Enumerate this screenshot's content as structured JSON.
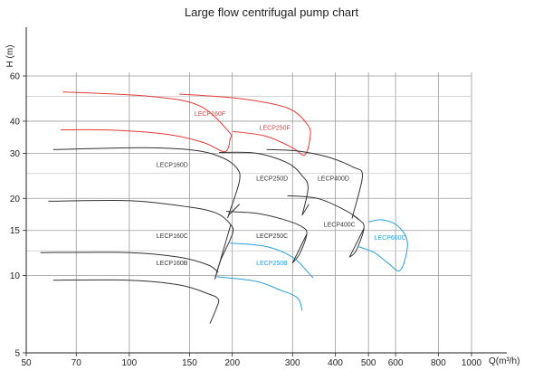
{
  "chart_data": {
    "type": "line",
    "title": "Large flow centrifugal pump chart",
    "xlabel": "Q(m³/h)",
    "ylabel": "H (m)",
    "xscale": "log",
    "yscale": "log",
    "xlim": [
      50,
      1000
    ],
    "ylim": [
      5,
      60
    ],
    "xticks": [
      50,
      70,
      100,
      150,
      200,
      300,
      400,
      500,
      600,
      800,
      1000
    ],
    "yticks": [
      5,
      10,
      15,
      20,
      30,
      40,
      60
    ],
    "extra_gridlines_y": [
      12.5,
      25,
      50
    ],
    "grid": true,
    "colors": {
      "red": "#e53935",
      "black": "#333333",
      "blue": "#29a0d8",
      "grid": "#9a9a9a"
    },
    "series": [
      {
        "name": "LECP160F",
        "color": "red",
        "label": {
          "text": "LECP160F",
          "at": [
            155,
            42
          ]
        },
        "points": [
          [
            63,
            37
          ],
          [
            90,
            36.9
          ],
          [
            130,
            35.5
          ],
          [
            165,
            33
          ],
          [
            190,
            30.4
          ],
          [
            197,
            34
          ],
          [
            195,
            36.5
          ],
          [
            160,
            46
          ],
          [
            115,
            50
          ],
          [
            64,
            52
          ]
        ]
      },
      {
        "name": "LECP250F",
        "color": "red",
        "label": {
          "text": "LECP250F",
          "at": [
            240,
            37
          ]
        },
        "points": [
          [
            200,
            36.5
          ],
          [
            250,
            35
          ],
          [
            300,
            31.5
          ],
          [
            325,
            29.5
          ],
          [
            337,
            34
          ],
          [
            333,
            38.5
          ],
          [
            290,
            45
          ],
          [
            210,
            49
          ],
          [
            140,
            51
          ]
        ]
      },
      {
        "name": "LECP160D",
        "color": "black",
        "label": {
          "text": "LECP160D",
          "at": [
            120,
            26.5
          ]
        },
        "points": [
          [
            60,
            31
          ],
          [
            110,
            31.5
          ],
          [
            155,
            30.8
          ],
          [
            185,
            29
          ],
          [
            205,
            26.5
          ],
          [
            210,
            23.5
          ],
          [
            195,
            17.2
          ],
          [
            195,
            17.2
          ]
        ]
      },
      {
        "name": "LECP250D",
        "color": "black",
        "label": {
          "text": "LECP250D",
          "at": [
            235,
            23.5
          ]
        },
        "points": [
          [
            183,
            30.2
          ],
          [
            235,
            30
          ],
          [
            290,
            27.5
          ],
          [
            320,
            24.5
          ],
          [
            333,
            22
          ],
          [
            320,
            17.2
          ]
        ]
      },
      {
        "name": "LECP400D",
        "color": "black",
        "label": {
          "text": "LECP400D",
          "at": [
            355,
            23.5
          ]
        },
        "points": [
          [
            252,
            31
          ],
          [
            310,
            30.6
          ],
          [
            380,
            29
          ],
          [
            450,
            26.5
          ],
          [
            480,
            24.5
          ],
          [
            450,
            17.2
          ],
          [
            450,
            17.2
          ]
        ]
      },
      {
        "name": "LECP160C",
        "color": "black",
        "label": {
          "text": "LECP160C",
          "at": [
            120,
            14
          ]
        },
        "points": [
          [
            58,
            19.5
          ],
          [
            100,
            19.6
          ],
          [
            150,
            18.5
          ],
          [
            180,
            17.5
          ],
          [
            198,
            15.8
          ],
          [
            200,
            14.5
          ],
          [
            185,
            11.5
          ],
          [
            178,
            9.7
          ]
        ]
      },
      {
        "name": "LECP250C",
        "color": "black",
        "label": {
          "text": "LECP250C",
          "at": [
            235,
            14
          ]
        },
        "points": [
          [
            192,
            17.8
          ],
          [
            235,
            17.5
          ],
          [
            280,
            16.6
          ],
          [
            320,
            15.5
          ],
          [
            330,
            14.5
          ],
          [
            315,
            12.2
          ],
          [
            300,
            11.2
          ]
        ]
      },
      {
        "name": "LECP400C",
        "color": "black",
        "label": {
          "text": "LECP400C",
          "at": [
            370,
            15.5
          ]
        },
        "points": [
          [
            290,
            20.5
          ],
          [
            355,
            20
          ],
          [
            420,
            18.2
          ],
          [
            470,
            16.5
          ],
          [
            485,
            15.3
          ],
          [
            460,
            12.5
          ],
          [
            440,
            11.8
          ]
        ]
      },
      {
        "name": "LECP160B",
        "color": "black",
        "label": {
          "text": "LECP160B",
          "at": [
            120,
            11
          ]
        },
        "points": [
          [
            60,
            9.6
          ],
          [
            100,
            9.6
          ],
          [
            140,
            9.2
          ],
          [
            170,
            8.5
          ],
          [
            182,
            8.1
          ],
          [
            180,
            7.5
          ],
          [
            172,
            6.5
          ]
        ]
      },
      {
        "name": "LECP160B_upper",
        "color": "black",
        "label": null,
        "points": [
          [
            55,
            12.3
          ],
          [
            100,
            12.3
          ],
          [
            140,
            11.8
          ],
          [
            170,
            11
          ],
          [
            182,
            10.3
          ]
        ]
      },
      {
        "name": "LECP250B",
        "color": "blue",
        "label": {
          "text": "LECP250B",
          "at": [
            235,
            11
          ]
        },
        "points": [
          [
            180,
            9.9
          ],
          [
            235,
            9.5
          ],
          [
            275,
            8.8
          ],
          [
            310,
            8.2
          ],
          [
            320,
            7.3
          ]
        ]
      },
      {
        "name": "LECP250B_upper",
        "color": "blue",
        "label": null,
        "points": [
          [
            197,
            13.4
          ],
          [
            250,
            13
          ],
          [
            300,
            11.8
          ],
          [
            335,
            10.2
          ],
          [
            345,
            9.8
          ]
        ]
      },
      {
        "name": "LECP600C",
        "color": "blue",
        "label": {
          "text": "LECP600C",
          "at": [
            520,
            13.8
          ]
        },
        "points": [
          [
            465,
            13
          ],
          [
            520,
            12.3
          ],
          [
            570,
            11.2
          ],
          [
            620,
            10.5
          ],
          [
            650,
            13.4
          ],
          [
            610,
            15.6
          ],
          [
            550,
            16.5
          ],
          [
            500,
            16.2
          ]
        ]
      }
    ],
    "connectors": [
      {
        "color": "black",
        "points": [
          [
            195,
            17.2
          ],
          [
            210,
            19
          ]
        ]
      },
      {
        "color": "black",
        "points": [
          [
            320,
            17.2
          ],
          [
            335,
            19
          ]
        ]
      },
      {
        "color": "black",
        "points": [
          [
            450,
            17.2
          ],
          [
            470,
            16.5
          ]
        ]
      },
      {
        "color": "black",
        "points": [
          [
            178,
            9.7
          ],
          [
            198,
            15.8
          ]
        ]
      },
      {
        "color": "black",
        "points": [
          [
            300,
            11.2
          ],
          [
            330,
            14.5
          ]
        ]
      },
      {
        "color": "black",
        "points": [
          [
            440,
            11.8
          ],
          [
            485,
            15.3
          ]
        ]
      }
    ]
  }
}
